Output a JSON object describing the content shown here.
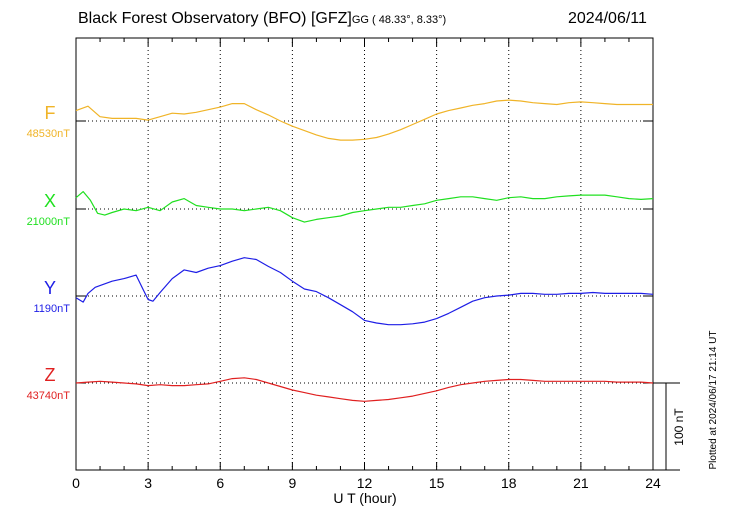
{
  "header": {
    "title": "Black Forest Observatory (BFO)  [GFZ]",
    "coords": "GG ( 48.33°,   8.33°)",
    "date": "2024/06/11"
  },
  "footer": {
    "plotted_note": "Plotted at 2024/06/17 21:14 UT"
  },
  "colors": {
    "F": "#f0b428",
    "X": "#20e020",
    "Y": "#1e1ee6",
    "Z": "#e02020"
  },
  "chart_data": {
    "type": "line",
    "xlabel": "U T (hour)",
    "xlim": [
      0,
      24
    ],
    "xticks": [
      0,
      3,
      6,
      9,
      12,
      15,
      18,
      21,
      24
    ],
    "scale_bar": "100 nT",
    "grid": true,
    "series": [
      {
        "name": "F",
        "baseline_label": "48530nT",
        "baseline": 48530,
        "color": "#f0b428",
        "x": [
          0,
          0.5,
          1,
          1.5,
          2,
          2.5,
          3,
          3.5,
          4,
          4.5,
          5,
          5.5,
          6,
          6.5,
          7,
          7.5,
          8,
          8.5,
          9,
          9.5,
          10,
          10.5,
          11,
          11.5,
          12,
          12.5,
          13,
          13.5,
          14,
          14.5,
          15,
          15.5,
          16,
          16.5,
          17,
          17.5,
          18,
          18.5,
          19,
          19.5,
          20,
          20.5,
          21,
          21.5,
          22,
          22.5,
          23,
          23.5,
          24
        ],
        "y": [
          48542,
          48547,
          48535,
          48533,
          48533,
          48533,
          48531,
          48535,
          48539,
          48538,
          48540,
          48543,
          48546,
          48550,
          48550,
          48543,
          48537,
          48530,
          48524,
          48519,
          48514,
          48510,
          48508,
          48508,
          48509,
          48511,
          48515,
          48520,
          48526,
          48532,
          48538,
          48542,
          48545,
          48548,
          48550,
          48553,
          48554,
          48553,
          48551,
          48550,
          48549,
          48551,
          48552,
          48551,
          48550,
          48549,
          48549,
          48549,
          48549
        ]
      },
      {
        "name": "X",
        "baseline_label": "21000nT",
        "baseline": 21000,
        "color": "#20e020",
        "x": [
          0,
          0.3,
          0.6,
          0.9,
          1.2,
          1.5,
          2,
          2.5,
          3,
          3.5,
          4,
          4.5,
          5,
          5.5,
          6,
          6.5,
          7,
          7.5,
          8,
          8.5,
          9,
          9.5,
          10,
          10.5,
          11,
          11.5,
          12,
          12.5,
          13,
          13.5,
          14,
          14.5,
          15,
          15.5,
          16,
          16.5,
          17,
          17.5,
          18,
          18.5,
          19,
          19.5,
          20,
          20.5,
          21,
          21.5,
          22,
          22.5,
          23,
          23.5,
          24
        ],
        "y": [
          21013,
          21020,
          21010,
          20995,
          20993,
          20996,
          21000,
          20998,
          21002,
          20998,
          21008,
          21012,
          21004,
          21002,
          21000,
          21000,
          20998,
          21000,
          21002,
          20998,
          20990,
          20985,
          20988,
          20990,
          20992,
          20996,
          20998,
          21000,
          21002,
          21002,
          21004,
          21006,
          21010,
          21012,
          21014,
          21014,
          21012,
          21010,
          21013,
          21014,
          21012,
          21012,
          21014,
          21015,
          21016,
          21016,
          21016,
          21014,
          21012,
          21011,
          21012
        ]
      },
      {
        "name": "Y",
        "baseline_label": "1190nT",
        "baseline": 1190,
        "color": "#1e1ee6",
        "x": [
          0,
          0.3,
          0.5,
          0.8,
          1,
          1.5,
          2,
          2.5,
          2.8,
          3,
          3.2,
          3.5,
          4,
          4.5,
          5,
          5.5,
          6,
          6.5,
          7,
          7.5,
          8,
          8.5,
          9,
          9.5,
          10,
          10.5,
          11,
          11.5,
          12,
          12.5,
          13,
          13.5,
          14,
          14.5,
          15,
          15.5,
          16,
          16.5,
          17,
          17.5,
          18,
          18.5,
          19,
          19.5,
          20,
          20.5,
          21,
          21.5,
          22,
          22.5,
          23,
          23.5,
          24
        ],
        "y": [
          1188,
          1183,
          1193,
          1200,
          1202,
          1207,
          1210,
          1214,
          1197,
          1186,
          1184,
          1194,
          1210,
          1220,
          1217,
          1222,
          1225,
          1230,
          1234,
          1232,
          1224,
          1217,
          1207,
          1198,
          1195,
          1188,
          1180,
          1172,
          1162,
          1159,
          1157,
          1157,
          1158,
          1160,
          1164,
          1170,
          1177,
          1184,
          1188,
          1190,
          1191,
          1193,
          1193,
          1192,
          1192,
          1193,
          1193,
          1194,
          1193,
          1193,
          1193,
          1193,
          1192
        ]
      },
      {
        "name": "Z",
        "baseline_label": "43740nT",
        "baseline": 43740,
        "color": "#e02020",
        "x": [
          0,
          0.5,
          1,
          1.5,
          2,
          2.5,
          3,
          3.5,
          4,
          4.5,
          5,
          5.5,
          6,
          6.5,
          7,
          7.5,
          8,
          8.5,
          9,
          9.5,
          10,
          10.5,
          11,
          11.5,
          12,
          12.5,
          13,
          13.5,
          14,
          14.5,
          15,
          15.5,
          16,
          16.5,
          17,
          17.5,
          18,
          18.5,
          19,
          19.5,
          20,
          20.5,
          21,
          21.5,
          22,
          22.5,
          23,
          23.5,
          24
        ],
        "y": [
          43740,
          43741,
          43742,
          43741,
          43740,
          43739,
          43737,
          43738,
          43737,
          43737,
          43738,
          43739,
          43742,
          43745,
          43746,
          43744,
          43740,
          43736,
          43732,
          43729,
          43726,
          43724,
          43722,
          43720,
          43719,
          43720,
          43721,
          43723,
          43725,
          43728,
          43731,
          43735,
          43738,
          43740,
          43742,
          43743,
          43744,
          43744,
          43743,
          43742,
          43742,
          43742,
          43742,
          43742,
          43742,
          43741,
          43741,
          43741,
          43740
        ]
      }
    ]
  }
}
